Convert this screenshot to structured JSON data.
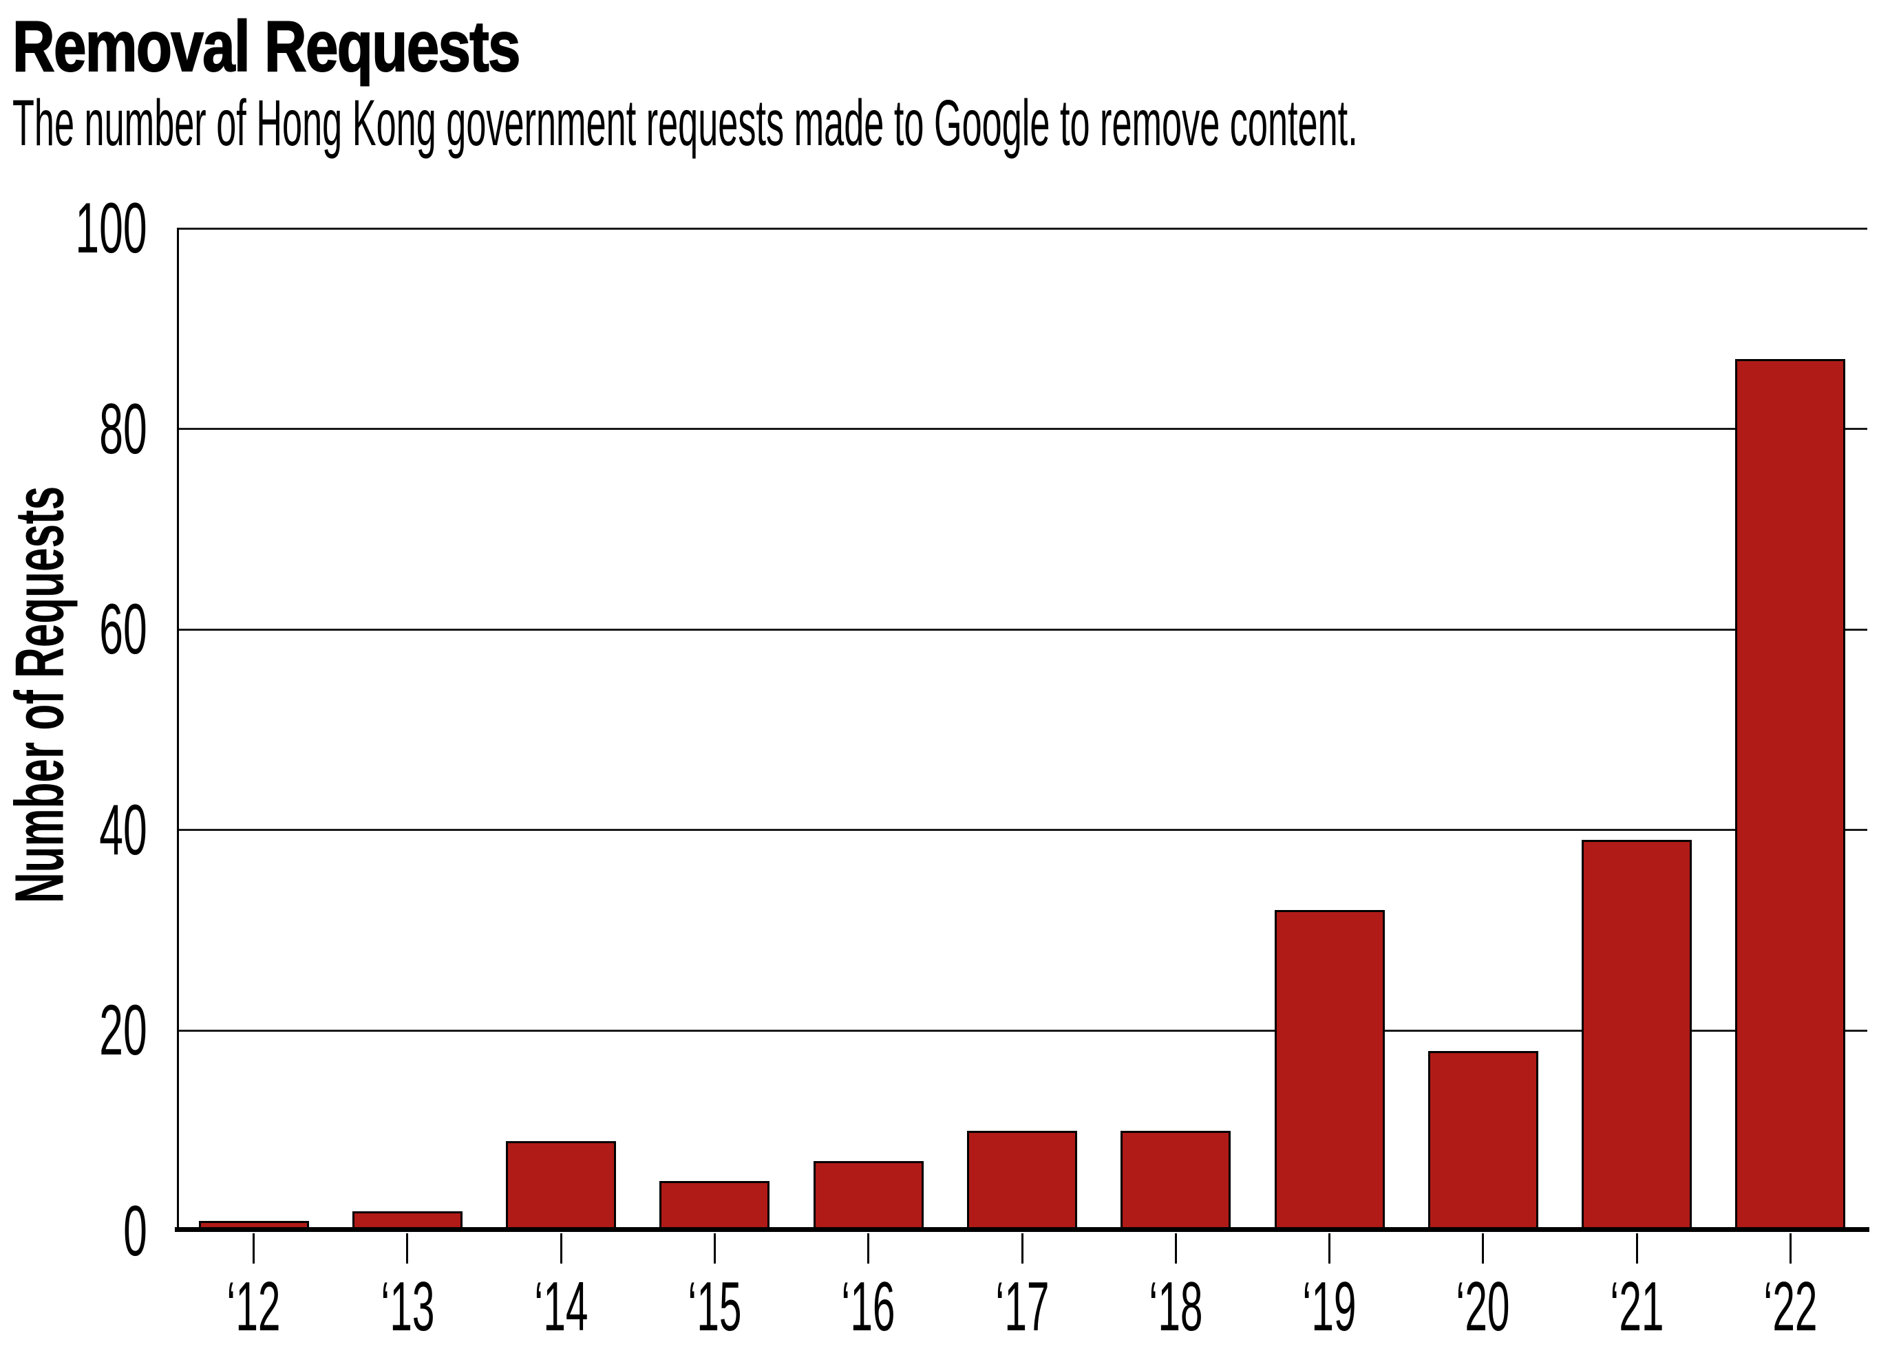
{
  "chart_data": {
    "type": "bar",
    "title": "Removal Requests",
    "subtitle": "The number of Hong Kong government requests made to Google to remove content.",
    "ylabel": "Number of Requests",
    "xlabel": "",
    "categories": [
      "‘12",
      "‘13",
      "‘14",
      "‘15",
      "‘16",
      "‘17",
      "‘18",
      "‘19",
      "‘20",
      "‘21",
      "‘22"
    ],
    "values": [
      1,
      2,
      9,
      5,
      7,
      10,
      10,
      32,
      18,
      39,
      87
    ],
    "ylim": [
      0,
      100
    ],
    "yticks": [
      0,
      20,
      40,
      60,
      80,
      100
    ],
    "grid": true,
    "legend_position": "none",
    "colors": {
      "bar_fill": "#B01B17",
      "bar_edge": "#000000",
      "axis": "#000000",
      "gridline": "#1A1A1A",
      "text": "#000000",
      "background": "#FFFFFF"
    }
  }
}
